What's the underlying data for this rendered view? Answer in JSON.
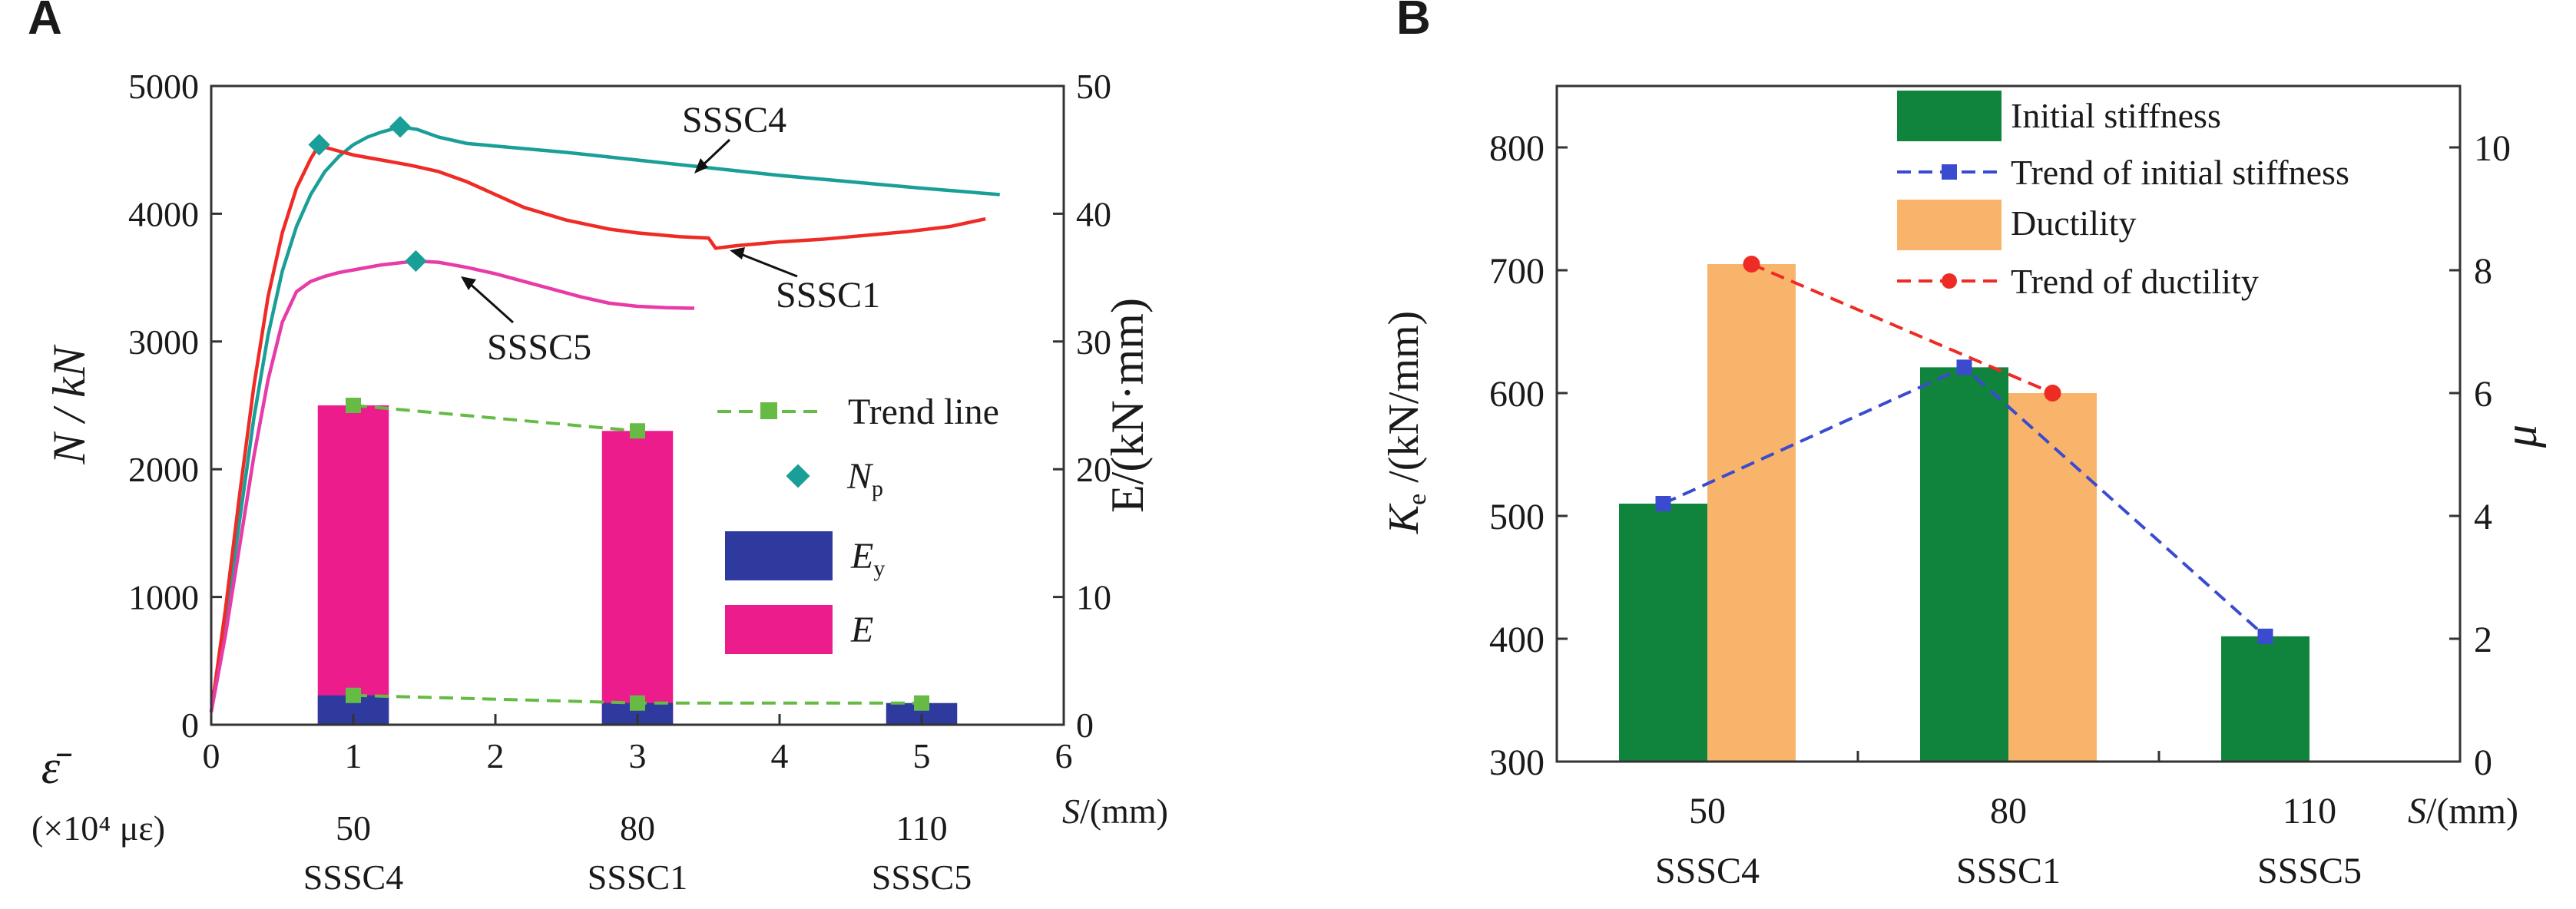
{
  "figure": {
    "panel_a_letter": "A",
    "panel_b_letter": "B"
  },
  "chart_data": [
    {
      "panel": "A",
      "type": "line+bar",
      "title": "",
      "xlabel_math": "S",
      "xlabel_unit": "/(mm)",
      "ylabel_left": "N / kN",
      "ylabel_right": "E/(kN·mm)",
      "xlim": [
        0,
        6
      ],
      "ylim_left": [
        0,
        5000
      ],
      "ylim_right": [
        0,
        50
      ],
      "x_ticks": [
        "0",
        "1",
        "2",
        "3",
        "4",
        "5",
        "6"
      ],
      "y_left_ticks": [
        "0",
        "1000",
        "2000",
        "3000",
        "4000",
        "5000"
      ],
      "y_right_ticks": [
        "0",
        "10",
        "20",
        "30",
        "40",
        "50"
      ],
      "extra_axis": {
        "symbol": "ε̄",
        "unit_line": "(×10⁴ με)",
        "spacing_values": [
          "50",
          "80",
          "110"
        ],
        "specimen_labels": [
          "SSSC4",
          "SSSC1",
          "SSSC5"
        ]
      },
      "curves": [
        {
          "name": "SSSC4",
          "color": "#1a9e98",
          "points": [
            [
              0,
              100
            ],
            [
              0.1,
              800
            ],
            [
              0.2,
              1600
            ],
            [
              0.3,
              2400
            ],
            [
              0.4,
              3050
            ],
            [
              0.5,
              3550
            ],
            [
              0.6,
              3900
            ],
            [
              0.7,
              4150
            ],
            [
              0.8,
              4330
            ],
            [
              0.9,
              4450
            ],
            [
              1.0,
              4540
            ],
            [
              1.1,
              4600
            ],
            [
              1.2,
              4640
            ],
            [
              1.3,
              4670
            ],
            [
              1.33,
              4680
            ],
            [
              1.45,
              4660
            ],
            [
              1.6,
              4600
            ],
            [
              1.8,
              4550
            ],
            [
              2.0,
              4530
            ],
            [
              2.5,
              4480
            ],
            [
              3.0,
              4420
            ],
            [
              3.5,
              4360
            ],
            [
              4.0,
              4300
            ],
            [
              4.5,
              4250
            ],
            [
              5.0,
              4200
            ],
            [
              5.55,
              4150
            ]
          ]
        },
        {
          "name": "SSSC1",
          "color": "#ee2b24",
          "points": [
            [
              0,
              100
            ],
            [
              0.1,
              900
            ],
            [
              0.2,
              1800
            ],
            [
              0.3,
              2650
            ],
            [
              0.4,
              3350
            ],
            [
              0.5,
              3850
            ],
            [
              0.6,
              4200
            ],
            [
              0.7,
              4430
            ],
            [
              0.76,
              4540
            ],
            [
              0.8,
              4520
            ],
            [
              0.9,
              4490
            ],
            [
              1.0,
              4460
            ],
            [
              1.2,
              4420
            ],
            [
              1.4,
              4380
            ],
            [
              1.6,
              4330
            ],
            [
              1.8,
              4250
            ],
            [
              2.0,
              4150
            ],
            [
              2.2,
              4050
            ],
            [
              2.5,
              3950
            ],
            [
              2.8,
              3880
            ],
            [
              3.0,
              3850
            ],
            [
              3.3,
              3820
            ],
            [
              3.5,
              3810
            ],
            [
              3.55,
              3730
            ],
            [
              3.7,
              3750
            ],
            [
              4.0,
              3780
            ],
            [
              4.3,
              3800
            ],
            [
              4.6,
              3830
            ],
            [
              4.9,
              3860
            ],
            [
              5.2,
              3900
            ],
            [
              5.45,
              3960
            ]
          ]
        },
        {
          "name": "SSSC5",
          "color": "#e83ba8",
          "points": [
            [
              0,
              100
            ],
            [
              0.1,
              700
            ],
            [
              0.2,
              1400
            ],
            [
              0.3,
              2100
            ],
            [
              0.4,
              2700
            ],
            [
              0.5,
              3150
            ],
            [
              0.6,
              3390
            ],
            [
              0.7,
              3470
            ],
            [
              0.8,
              3510
            ],
            [
              0.9,
              3540
            ],
            [
              1.0,
              3560
            ],
            [
              1.2,
              3600
            ],
            [
              1.44,
              3630
            ],
            [
              1.6,
              3620
            ],
            [
              1.8,
              3580
            ],
            [
              2.0,
              3530
            ],
            [
              2.2,
              3470
            ],
            [
              2.4,
              3410
            ],
            [
              2.6,
              3350
            ],
            [
              2.8,
              3300
            ],
            [
              3.0,
              3275
            ],
            [
              3.2,
              3265
            ],
            [
              3.4,
              3260
            ]
          ]
        }
      ],
      "Np_points": [
        {
          "curve": "SSSC4",
          "x": 1.33,
          "y": 4680
        },
        {
          "curve": "SSSC1",
          "x": 0.76,
          "y": 4540
        },
        {
          "curve": "SSSC5",
          "x": 1.44,
          "y": 3630
        }
      ],
      "curve_labels": [
        "SSSC4",
        "SSSC1",
        "SSSC5"
      ],
      "bars": {
        "x_positions": [
          1,
          3,
          5
        ],
        "E": [
          25.0,
          23.0,
          0
        ],
        "Ey": [
          2.3,
          1.7,
          1.7
        ],
        "bar_width": 0.5,
        "E_color": "#ec1c8c",
        "Ey_color": "#2e3a9e"
      },
      "trend_line": {
        "color": "#66bb44",
        "E_points": [
          [
            1.0,
            25.0
          ],
          [
            3.0,
            23.0
          ]
        ],
        "Ey_points": [
          [
            1.0,
            2.3
          ],
          [
            3.0,
            1.7
          ],
          [
            5.0,
            1.7
          ]
        ]
      },
      "legend": [
        "Trend line",
        "N",
        "p",
        "E",
        "y",
        "E"
      ]
    },
    {
      "panel": "B",
      "type": "bar+line",
      "title": "",
      "xlabel_math": "S",
      "xlabel_unit": "/(mm)",
      "ylabel_left_symbol": "K",
      "ylabel_left_sub": "e",
      "ylabel_left_unit": " /(kN/mm)",
      "ylabel_right": "μ",
      "ylim_left": [
        300,
        850
      ],
      "ylim_right": [
        0,
        11
      ],
      "y_left_ticks": [
        "300",
        "400",
        "500",
        "600",
        "700",
        "800"
      ],
      "y_right_ticks": [
        "0",
        "2",
        "4",
        "6",
        "8",
        "10"
      ],
      "categories": [
        "50",
        "80",
        "110"
      ],
      "specimens": [
        "SSSC4",
        "SSSC1",
        "SSSC5"
      ],
      "series": [
        {
          "name": "Initial stiffness",
          "kind": "bar",
          "axis": "left",
          "color": "#10843c",
          "values": [
            510,
            621,
            402
          ]
        },
        {
          "name": "Trend of initial stiffness",
          "kind": "line",
          "axis": "left",
          "color": "#3a4bd0",
          "values": [
            510,
            621,
            402
          ]
        },
        {
          "name": "Ductility",
          "kind": "bar",
          "axis": "right",
          "color": "#f9b46c",
          "values": [
            8.1,
            6.0,
            null
          ]
        },
        {
          "name": "Trend of ductility",
          "kind": "line",
          "axis": "right",
          "color": "#ee2b24",
          "values": [
            8.1,
            6.0,
            null
          ]
        }
      ],
      "legend": [
        "Initial stiffness",
        "Trend of initial stiffness",
        "Ductility",
        "Trend of ductility"
      ]
    }
  ]
}
